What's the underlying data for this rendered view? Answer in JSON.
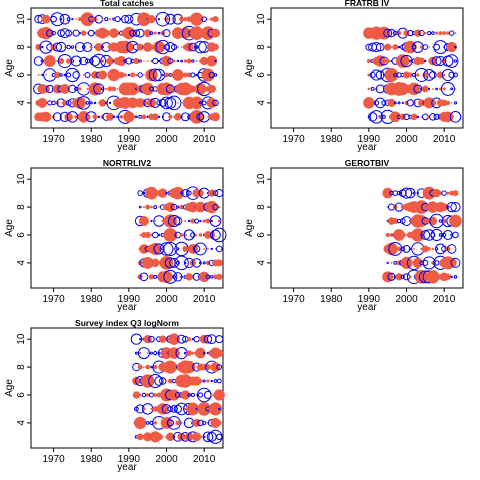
{
  "chart_data": [
    {
      "type": "scatter",
      "title": "Total catches",
      "xlabel": "year",
      "ylabel": "Age",
      "xlim": [
        1964,
        2015
      ],
      "ylim": [
        2.2,
        10.8
      ],
      "xticks": [
        "1970",
        "1980",
        "1990",
        "2000",
        "2010"
      ],
      "yticks": [
        "4",
        "6",
        "8",
        "10"
      ],
      "x_range": [
        1966,
        2013
      ],
      "ages": [
        3,
        4,
        5,
        6,
        7,
        8,
        9,
        10
      ],
      "series": [
        {
          "color": "#ef5b45",
          "marker": "filled-circle",
          "meaning": "positive residual"
        },
        {
          "color": "#0000ee",
          "marker": "open-circle",
          "meaning": "negative residual"
        }
      ]
    },
    {
      "type": "scatter",
      "title": "FRATRB IV",
      "xlabel": "year",
      "ylabel": "Age",
      "xlim": [
        1964,
        2015
      ],
      "ylim": [
        2.2,
        10.8
      ],
      "xticks": [
        "1970",
        "1980",
        "1990",
        "2000",
        "2010"
      ],
      "yticks": [
        "4",
        "6",
        "8",
        "10"
      ],
      "x_range": [
        1990,
        2013
      ],
      "ages": [
        3,
        4,
        5,
        6,
        7,
        8,
        9
      ],
      "series": [
        {
          "color": "#ef5b45",
          "marker": "filled-circle",
          "meaning": "positive residual"
        },
        {
          "color": "#0000ee",
          "marker": "open-circle",
          "meaning": "negative residual"
        }
      ]
    },
    {
      "type": "scatter",
      "title": "NORTRLIV2",
      "xlabel": "year",
      "ylabel": "Age",
      "xlim": [
        1964,
        2015
      ],
      "ylim": [
        2.2,
        10.8
      ],
      "xticks": [
        "1970",
        "1980",
        "1990",
        "2000",
        "2010"
      ],
      "yticks": [
        "4",
        "6",
        "8",
        "10"
      ],
      "x_range": [
        1993,
        2014
      ],
      "ages": [
        3,
        4,
        5,
        6,
        7,
        8,
        9
      ],
      "series": [
        {
          "color": "#ef5b45",
          "marker": "filled-circle",
          "meaning": "positive residual"
        },
        {
          "color": "#0000ee",
          "marker": "open-circle",
          "meaning": "negative residual"
        }
      ]
    },
    {
      "type": "scatter",
      "title": "GEROTBIV",
      "xlabel": "year",
      "ylabel": "Age",
      "xlim": [
        1964,
        2015
      ],
      "ylim": [
        2.2,
        10.8
      ],
      "xticks": [
        "1970",
        "1980",
        "1990",
        "2000",
        "2010"
      ],
      "yticks": [
        "4",
        "6",
        "8",
        "10"
      ],
      "x_range": [
        1995,
        2013
      ],
      "ages": [
        3,
        4,
        5,
        6,
        7,
        8,
        9
      ],
      "series": [
        {
          "color": "#ef5b45",
          "marker": "filled-circle",
          "meaning": "positive residual"
        },
        {
          "color": "#0000ee",
          "marker": "open-circle",
          "meaning": "negative residual"
        }
      ]
    },
    {
      "type": "scatter",
      "title": "Survey index Q3 logNorm",
      "xlabel": "year",
      "ylabel": "Age",
      "xlim": [
        1964,
        2015
      ],
      "ylim": [
        2.2,
        10.8
      ],
      "xticks": [
        "1970",
        "1980",
        "1990",
        "2000",
        "2010"
      ],
      "yticks": [
        "4",
        "6",
        "8",
        "10"
      ],
      "x_range": [
        1992,
        2014
      ],
      "ages": [
        3,
        4,
        5,
        6,
        7,
        8,
        9,
        10
      ],
      "series": [
        {
          "color": "#ef5b45",
          "marker": "filled-circle",
          "meaning": "positive residual"
        },
        {
          "color": "#0000ee",
          "marker": "open-circle",
          "meaning": "negative residual"
        }
      ]
    }
  ]
}
